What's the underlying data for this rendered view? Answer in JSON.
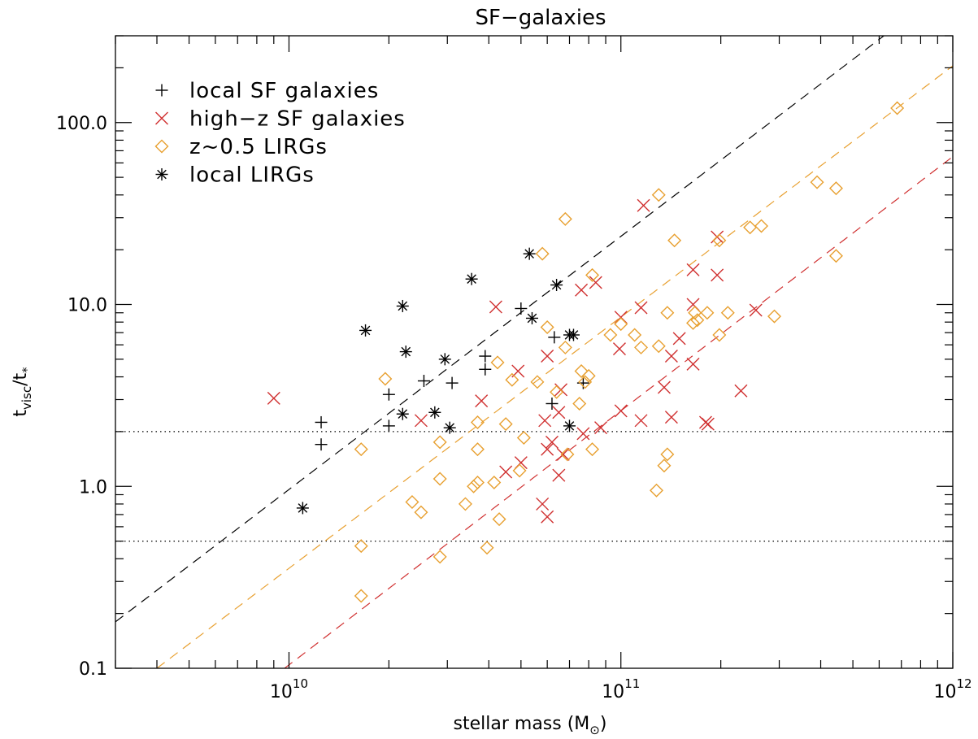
{
  "chart_data": {
    "type": "scatter",
    "title": "SF−galaxies",
    "xlabel": {
      "pre": "stellar mass (M",
      "sub": "⊙",
      "post": ")"
    },
    "ylabel": {
      "t1": "t",
      "sub1": "visc",
      "slash": "/t",
      "sub2": "*"
    },
    "xscale": "log",
    "yscale": "log",
    "xlim": [
      3000000000.0,
      1000000000000.0
    ],
    "ylim": [
      0.1,
      300
    ],
    "x_ticks": [
      {
        "value": 10000000000.0,
        "base": "10",
        "exp": "10"
      },
      {
        "value": 100000000000.0,
        "base": "10",
        "exp": "11"
      },
      {
        "value": 1000000000000.0,
        "base": "10",
        "exp": "12"
      }
    ],
    "y_ticks": [
      {
        "value": 0.1,
        "label": "0.1"
      },
      {
        "value": 1.0,
        "label": "1.0"
      },
      {
        "value": 10.0,
        "label": "10.0"
      },
      {
        "value": 100.0,
        "label": "100.0"
      }
    ],
    "grid": false,
    "legend_position": "top-left",
    "hlines": [
      2.0,
      0.5
    ],
    "fit_lines": [
      {
        "color": "#000000",
        "points": [
          [
            3000000000.0,
            0.18
          ],
          [
            620000000000.0,
            300
          ]
        ]
      },
      {
        "color": "#e8a030",
        "points": [
          [
            4000000000.0,
            0.1
          ],
          [
            1000000000000.0,
            205
          ]
        ]
      },
      {
        "color": "#d03030",
        "points": [
          [
            9700000000.0,
            0.1
          ],
          [
            1000000000000.0,
            65
          ]
        ]
      }
    ],
    "series": [
      {
        "name": "local SF galaxies",
        "marker": "plus",
        "color": "#000000",
        "points": [
          [
            12500000000.0,
            1.7
          ],
          [
            12500000000.0,
            2.25
          ],
          [
            20000000000.0,
            2.15
          ],
          [
            20000000000.0,
            3.2
          ],
          [
            25500000000.0,
            3.8
          ],
          [
            31000000000.0,
            3.7
          ],
          [
            39000000000.0,
            4.4
          ],
          [
            39000000000.0,
            5.2
          ],
          [
            50000000000.0,
            9.5
          ],
          [
            62000000000.0,
            2.85
          ],
          [
            63000000000.0,
            6.6
          ],
          [
            77000000000.0,
            3.7
          ]
        ]
      },
      {
        "name": "high−z SF galaxies",
        "marker": "x",
        "color": "#d03030",
        "points": [
          [
            9000000000.0,
            3.05
          ],
          [
            25000000000.0,
            2.3
          ],
          [
            38000000000.0,
            2.95
          ],
          [
            42000000000.0,
            9.7
          ],
          [
            49000000000.0,
            4.3
          ],
          [
            45000000000.0,
            1.2
          ],
          [
            50000000000.0,
            1.35
          ],
          [
            58000000000.0,
            0.8
          ],
          [
            60000000000.0,
            0.68
          ],
          [
            60000000000.0,
            1.6
          ],
          [
            62000000000.0,
            1.75
          ],
          [
            59000000000.0,
            2.3
          ],
          [
            60000000000.0,
            5.2
          ],
          [
            65000000000.0,
            1.15
          ],
          [
            65000000000.0,
            2.55
          ],
          [
            66000000000.0,
            3.4
          ],
          [
            67000000000.0,
            1.5
          ],
          [
            77000000000.0,
            1.95
          ],
          [
            76000000000.0,
            12.0
          ],
          [
            84000000000.0,
            13.2
          ],
          [
            87000000000.0,
            2.1
          ],
          [
            100000000000.0,
            2.6
          ],
          [
            99000000000.0,
            5.7
          ],
          [
            100000000000.0,
            8.5
          ],
          [
            115000000000.0,
            2.3
          ],
          [
            115000000000.0,
            9.6
          ],
          [
            117000000000.0,
            35.0
          ],
          [
            135000000000.0,
            3.5
          ],
          [
            142000000000.0,
            2.4
          ],
          [
            142000000000.0,
            5.2
          ],
          [
            150000000000.0,
            6.5
          ],
          [
            165000000000.0,
            4.7
          ],
          [
            165000000000.0,
            10.0
          ],
          [
            165000000000.0,
            15.5
          ],
          [
            180000000000.0,
            2.25
          ],
          [
            183000000000.0,
            2.2
          ],
          [
            195000000000.0,
            14.5
          ],
          [
            195000000000.0,
            23.5
          ],
          [
            230000000000.0,
            3.35
          ],
          [
            255000000000.0,
            9.3
          ]
        ]
      },
      {
        "name": "z~0.5 LIRGs",
        "marker": "diamond",
        "color": "#e8a030",
        "points": [
          [
            16500000000.0,
            0.25
          ],
          [
            16500000000.0,
            0.47
          ],
          [
            16500000000.0,
            1.6
          ],
          [
            19500000000.0,
            3.9
          ],
          [
            23500000000.0,
            0.82
          ],
          [
            25000000000.0,
            0.72
          ],
          [
            28500000000.0,
            0.41
          ],
          [
            28500000000.0,
            1.1
          ],
          [
            28500000000.0,
            1.75
          ],
          [
            34000000000.0,
            0.8
          ],
          [
            36000000000.0,
            1.0
          ],
          [
            37000000000.0,
            1.05
          ],
          [
            37000000000.0,
            1.6
          ],
          [
            37000000000.0,
            2.25
          ],
          [
            39500000000.0,
            0.46
          ],
          [
            41500000000.0,
            1.05
          ],
          [
            42500000000.0,
            4.8
          ],
          [
            43000000000.0,
            0.66
          ],
          [
            45000000000.0,
            2.2
          ],
          [
            47000000000.0,
            3.85
          ],
          [
            49500000000.0,
            1.22
          ],
          [
            51000000000.0,
            1.85
          ],
          [
            56000000000.0,
            3.75
          ],
          [
            58000000000.0,
            19.0
          ],
          [
            60000000000.0,
            7.5
          ],
          [
            64000000000.0,
            3.3
          ],
          [
            68000000000.0,
            29.5
          ],
          [
            69000000000.0,
            1.5
          ],
          [
            68000000000.0,
            5.8
          ],
          [
            75000000000.0,
            2.85
          ],
          [
            76000000000.0,
            4.3
          ],
          [
            78000000000.0,
            3.75
          ],
          [
            80000000000.0,
            4.05
          ],
          [
            82000000000.0,
            14.5
          ],
          [
            82000000000.0,
            1.6
          ],
          [
            93000000000.0,
            6.8
          ],
          [
            100000000000.0,
            7.8
          ],
          [
            110000000000.0,
            6.8
          ],
          [
            115000000000.0,
            5.8
          ],
          [
            128000000000.0,
            0.95
          ],
          [
            130000000000.0,
            5.9
          ],
          [
            130000000000.0,
            40.0
          ],
          [
            135000000000.0,
            1.3
          ],
          [
            138000000000.0,
            1.5
          ],
          [
            138000000000.0,
            9.0
          ],
          [
            145000000000.0,
            22.5
          ],
          [
            165000000000.0,
            7.9
          ],
          [
            167000000000.0,
            9.0
          ],
          [
            170000000000.0,
            8.2
          ],
          [
            182000000000.0,
            9.0
          ],
          [
            198000000000.0,
            6.8
          ],
          [
            198000000000.0,
            22.5
          ],
          [
            210000000000.0,
            9.0
          ],
          [
            245000000000.0,
            26.5
          ],
          [
            265000000000.0,
            27.0
          ],
          [
            290000000000.0,
            8.6
          ],
          [
            390000000000.0,
            47.0
          ],
          [
            445000000000.0,
            18.5
          ],
          [
            445000000000.0,
            43.5
          ],
          [
            680000000000.0,
            120.0
          ]
        ]
      },
      {
        "name": "local LIRGs",
        "marker": "asterisk",
        "color": "#000000",
        "points": [
          [
            11000000000.0,
            0.76
          ],
          [
            17000000000.0,
            7.2
          ],
          [
            22000000000.0,
            2.5
          ],
          [
            22000000000.0,
            9.8
          ],
          [
            22500000000.0,
            5.5
          ],
          [
            27500000000.0,
            2.55
          ],
          [
            29500000000.0,
            5.0
          ],
          [
            30500000000.0,
            2.1
          ],
          [
            35500000000.0,
            13.8
          ],
          [
            53000000000.0,
            19.0
          ],
          [
            54000000000.0,
            8.4
          ],
          [
            64000000000.0,
            12.8
          ],
          [
            70000000000.0,
            2.15
          ],
          [
            70000000000.0,
            6.8
          ],
          [
            72000000000.0,
            6.8
          ]
        ]
      }
    ]
  }
}
